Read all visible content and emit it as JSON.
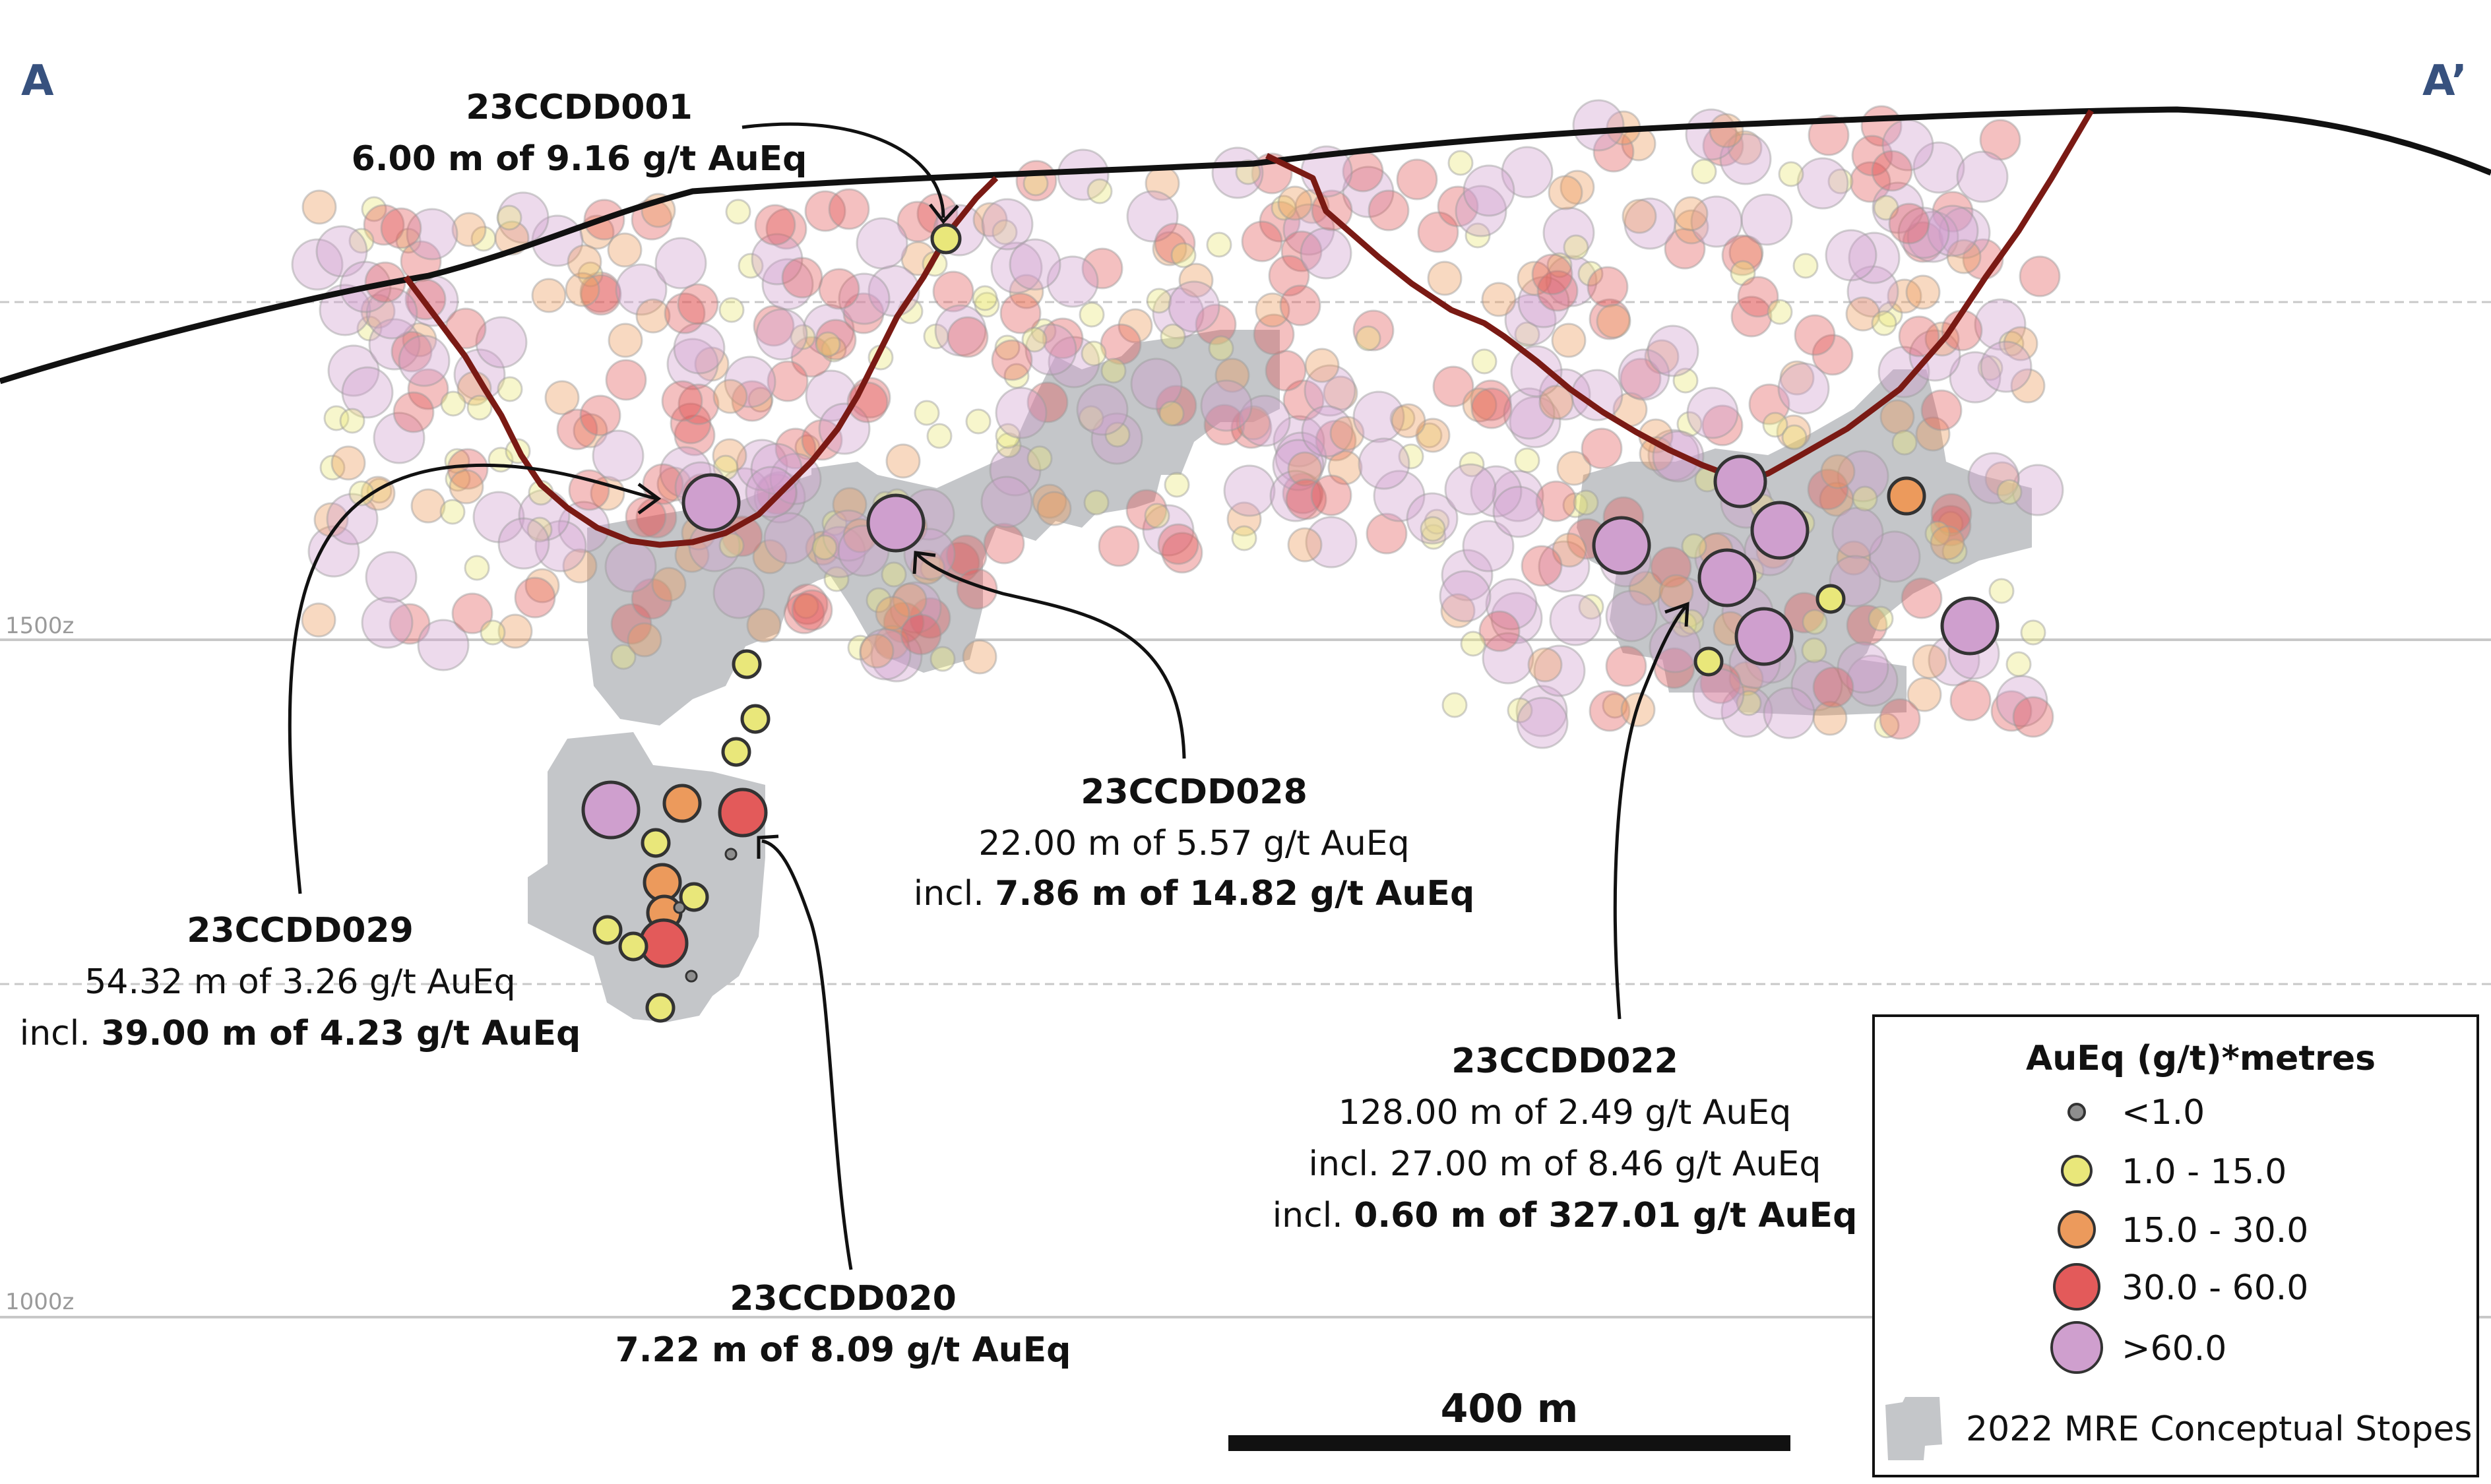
{
  "section": {
    "start_label": "A",
    "end_label": "A’"
  },
  "elevations": [
    {
      "label": "1500z",
      "elev": 1500
    },
    {
      "label": "1000z",
      "elev": 1000
    }
  ],
  "colors": {
    "lt1": "#8e8e8e",
    "1to15": "#e9e77a",
    "15to30": "#ec9a5c",
    "30to60": "#e35a5a",
    "gt60": "#cf9fce",
    "stope": "#c4c6c9",
    "pit": "#7a1a14",
    "topo": "#111111"
  },
  "callouts": [
    {
      "id": "23CCDD001",
      "lines": [
        [
          {
            "t": "6.00 m of 9.16 g/t AuEq",
            "b": true
          }
        ]
      ]
    },
    {
      "id": "23CCDD029",
      "lines": [
        [
          {
            "t": "54.32 m of 3.26 g/t AuEq",
            "b": false
          }
        ],
        [
          {
            "t": "incl. ",
            "b": false
          },
          {
            "t": "39.00 m of 4.23 g/t AuEq",
            "b": true
          }
        ]
      ]
    },
    {
      "id": "23CCDD028",
      "lines": [
        [
          {
            "t": "22.00 m of 5.57 g/t AuEq",
            "b": false
          }
        ],
        [
          {
            "t": "incl. ",
            "b": false
          },
          {
            "t": "7.86 m of 14.82 g/t AuEq",
            "b": true
          }
        ]
      ]
    },
    {
      "id": "23CCDD020",
      "lines": [
        [
          {
            "t": "7.22 m of 8.09 g/t AuEq",
            "b": true
          }
        ]
      ]
    },
    {
      "id": "23CCDD022",
      "lines": [
        [
          {
            "t": "128.00 m of 2.49 g/t AuEq",
            "b": false
          }
        ],
        [
          {
            "t": "incl. 27.00 m of 8.46 g/t AuEq",
            "b": false
          }
        ],
        [
          {
            "t": "incl. ",
            "b": false
          },
          {
            "t": "0.60 m of 327.01 g/t AuEq",
            "b": true
          }
        ]
      ]
    }
  ],
  "scale_bar": {
    "label": "400 m"
  },
  "legend": {
    "title": "AuEq (g/t)*metres",
    "items": [
      {
        "label": "<1.0",
        "color_key": "lt1"
      },
      {
        "label": "1.0 - 15.0",
        "color_key": "1to15"
      },
      {
        "label": "15.0 - 30.0",
        "color_key": "15to30"
      },
      {
        "label": "30.0 - 60.0",
        "color_key": "30to60"
      },
      {
        "label": ">60.0",
        "color_key": "gt60"
      }
    ],
    "stope_label": "2022 MRE Conceptual Stopes"
  }
}
